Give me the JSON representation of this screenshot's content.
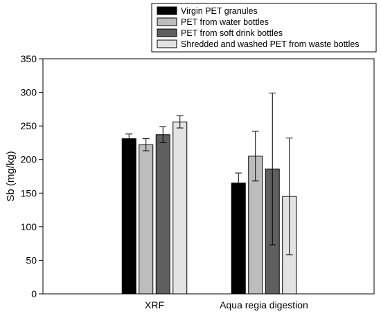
{
  "chart_data": {
    "type": "bar",
    "title": "",
    "xlabel": "",
    "ylabel": "Sb (mg/kg)",
    "ylim": [
      0,
      350
    ],
    "yticks": [
      0,
      50,
      100,
      150,
      200,
      250,
      300,
      350
    ],
    "grid": false,
    "legend_position": "top-right",
    "categories": [
      "XRF",
      "Aqua regia digestion"
    ],
    "series": [
      {
        "name": "Virgin PET granules",
        "color": "#000000",
        "values": [
          231,
          165
        ],
        "errors": [
          7,
          15
        ]
      },
      {
        "name": "PET from water bottles",
        "color": "#bdbdbd",
        "values": [
          222,
          205
        ],
        "errors": [
          9,
          37
        ]
      },
      {
        "name": "PET from soft drink bottles",
        "color": "#5f5f5f",
        "values": [
          237,
          186
        ],
        "errors": [
          12,
          113
        ]
      },
      {
        "name": "Shredded and washed PET from waste bottles",
        "color": "#e3e3e3",
        "values": [
          256,
          145
        ],
        "errors": [
          9,
          87
        ]
      }
    ]
  }
}
